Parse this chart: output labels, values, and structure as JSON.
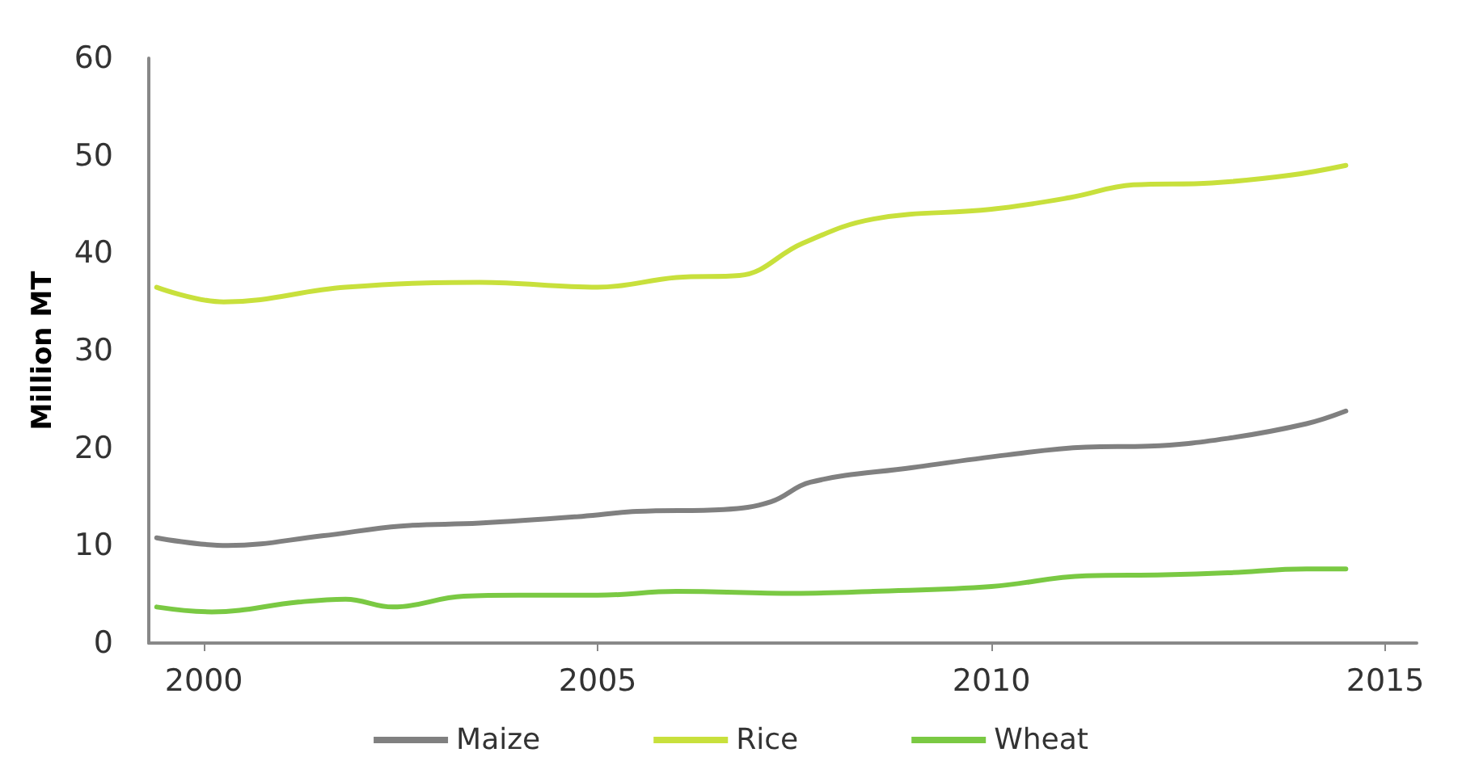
{
  "chart_data": {
    "type": "line",
    "ylabel": "Million MT",
    "xlim": [
      1999.3,
      2015.4
    ],
    "xticks": [
      2000,
      2005,
      2010,
      2015
    ],
    "ylim": [
      0,
      60
    ],
    "yticks": [
      0,
      10,
      20,
      30,
      40,
      50,
      60
    ],
    "grid": false,
    "legend": "bottom",
    "marker": "none",
    "line_style": "solid",
    "series": [
      {
        "name": "Maize",
        "color": "#808080",
        "x": [
          1999.4,
          2000.3,
          2001.5,
          2002.5,
          2003.5,
          2004.8,
          2005.5,
          2006.6,
          2007.2,
          2007.7,
          2009,
          2010.2,
          2011.2,
          2012,
          2013,
          2014,
          2014.5
        ],
        "values": [
          10.8,
          10,
          11,
          12,
          12.3,
          13,
          13.5,
          13.7,
          14.5,
          16.5,
          18,
          19.3,
          20.1,
          20.2,
          21,
          22.5,
          23.8
        ]
      },
      {
        "name": "Rice",
        "color": "#c8e03c",
        "x": [
          1999.4,
          2000.25,
          2001.8,
          2003.5,
          2005,
          2006,
          2006.8,
          2007.6,
          2008.5,
          2010,
          2011,
          2011.8,
          2012.8,
          2013.8,
          2014.5
        ],
        "values": [
          36.5,
          35,
          36.5,
          37,
          36.5,
          37.5,
          37.7,
          41,
          43.5,
          44.5,
          45.7,
          47,
          47.2,
          48,
          49
        ]
      },
      {
        "name": "Wheat",
        "color": "#7ac943",
        "x": [
          1999.4,
          2000.1,
          2001.2,
          2001.8,
          2002.4,
          2003.3,
          2004,
          2005,
          2006,
          2007.5,
          2008.5,
          2010,
          2011.2,
          2012.2,
          2013,
          2014,
          2014.5
        ],
        "values": [
          3.7,
          3.2,
          4.2,
          4.5,
          3.7,
          4.8,
          4.9,
          4.9,
          5.3,
          5.1,
          5.3,
          5.8,
          6.9,
          7,
          7.2,
          7.6,
          7.6
        ]
      }
    ]
  }
}
